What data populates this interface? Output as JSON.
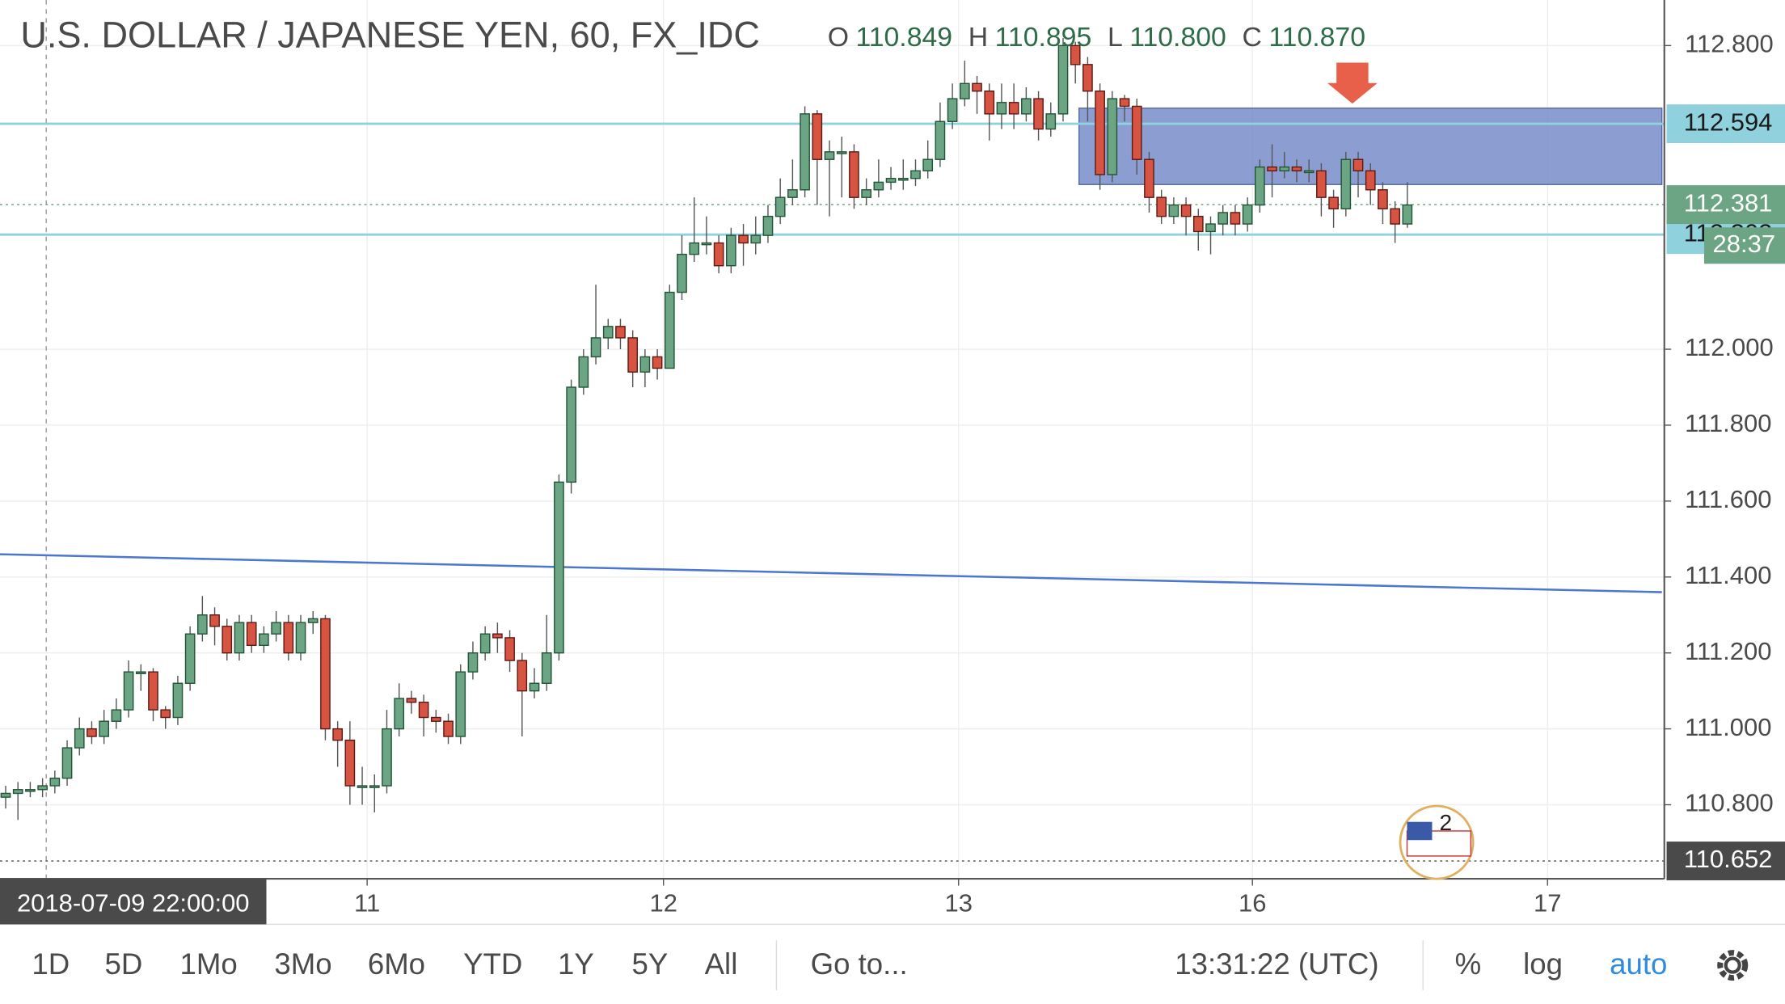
{
  "chart_data": {
    "type": "candlestick",
    "title": "U.S. DOLLAR / JAPANESE YEN, 60, FX_IDC",
    "ohlc_legend": [
      {
        "name": "O",
        "value": 110.849
      },
      {
        "name": "H",
        "value": 110.895
      },
      {
        "name": "L",
        "value": 110.8,
        "label": "110.800"
      },
      {
        "name": "C",
        "value": 110.87,
        "label": "110.870"
      }
    ],
    "open": [
      110.82,
      110.83,
      110.84,
      110.84,
      110.85,
      110.87,
      110.95,
      111.0,
      110.98,
      111.02,
      111.05,
      111.15,
      111.15,
      111.05,
      111.03,
      111.12,
      111.25,
      111.3,
      111.27,
      111.2,
      111.28,
      111.22,
      111.25,
      111.28,
      111.2,
      111.28,
      111.29,
      111.0,
      110.97,
      110.85,
      110.85,
      110.85,
      111.0,
      111.08,
      111.07,
      111.03,
      111.02,
      110.98,
      111.15,
      111.2,
      111.25,
      111.24,
      111.18,
      111.1,
      111.12,
      111.2,
      111.65,
      111.9,
      111.98,
      112.03,
      112.06,
      112.03,
      111.94,
      111.98,
      111.95,
      112.15,
      112.25,
      112.28,
      112.28,
      112.22,
      112.3,
      112.28,
      112.3,
      112.35,
      112.4,
      112.42,
      112.62,
      112.5,
      112.52,
      112.52,
      112.4,
      112.42,
      112.44,
      112.45,
      112.45,
      112.47,
      112.5,
      112.6,
      112.66,
      112.7,
      112.68,
      112.62,
      112.65,
      112.62,
      112.66,
      112.58,
      112.62,
      112.8,
      112.75,
      112.68,
      112.46,
      112.66,
      112.64,
      112.5,
      112.4,
      112.35,
      112.38,
      112.35,
      112.31,
      112.33,
      112.36,
      112.33,
      112.38,
      112.48,
      112.47,
      112.48,
      112.47,
      112.47,
      112.4,
      112.37,
      112.5,
      112.47,
      112.42,
      112.37,
      112.33
    ],
    "high": [
      110.85,
      110.86,
      110.86,
      110.87,
      110.89,
      110.97,
      111.03,
      111.02,
      111.05,
      111.08,
      111.18,
      111.17,
      111.16,
      111.06,
      111.14,
      111.27,
      111.35,
      111.32,
      111.29,
      111.3,
      111.3,
      111.27,
      111.31,
      111.3,
      111.3,
      111.31,
      111.3,
      111.02,
      111.02,
      110.9,
      110.88,
      111.05,
      111.12,
      111.1,
      111.09,
      111.05,
      111.04,
      111.17,
      111.23,
      111.27,
      111.28,
      111.26,
      111.2,
      111.16,
      111.3,
      111.67,
      111.92,
      112.0,
      112.17,
      112.08,
      112.08,
      112.05,
      112.0,
      112.0,
      112.17,
      112.3,
      112.4,
      112.35,
      112.3,
      112.32,
      112.33,
      112.35,
      112.38,
      112.45,
      112.5,
      112.64,
      112.63,
      112.55,
      112.56,
      112.54,
      112.45,
      112.5,
      112.48,
      112.5,
      112.5,
      112.55,
      112.65,
      112.7,
      112.76,
      112.72,
      112.7,
      112.7,
      112.7,
      112.69,
      112.68,
      112.65,
      112.82,
      112.81,
      112.77,
      112.7,
      112.68,
      112.67,
      112.66,
      112.52,
      112.42,
      112.4,
      112.4,
      112.37,
      112.35,
      112.38,
      112.38,
      112.4,
      112.5,
      112.54,
      112.52,
      112.5,
      112.5,
      112.49,
      112.42,
      112.52,
      112.52,
      112.49,
      112.44,
      112.39,
      112.44
    ],
    "low": [
      110.79,
      110.76,
      110.82,
      110.82,
      110.83,
      110.85,
      110.93,
      110.96,
      110.96,
      111.0,
      111.03,
      111.1,
      111.02,
      111.0,
      111.01,
      111.1,
      111.23,
      111.22,
      111.18,
      111.18,
      111.2,
      111.2,
      111.23,
      111.18,
      111.18,
      111.25,
      110.97,
      110.9,
      110.8,
      110.8,
      110.78,
      110.83,
      110.98,
      111.04,
      110.98,
      110.99,
      110.96,
      110.96,
      111.13,
      111.18,
      111.2,
      111.15,
      110.98,
      111.08,
      111.1,
      111.18,
      111.62,
      111.88,
      111.96,
      112.0,
      112.0,
      111.9,
      111.9,
      111.92,
      111.95,
      112.13,
      112.23,
      112.25,
      112.2,
      112.2,
      112.22,
      112.25,
      112.28,
      112.33,
      112.38,
      112.4,
      112.38,
      112.35,
      112.4,
      112.37,
      112.38,
      112.4,
      112.42,
      112.42,
      112.43,
      112.45,
      112.48,
      112.58,
      112.64,
      112.62,
      112.55,
      112.58,
      112.58,
      112.6,
      112.55,
      112.56,
      112.6,
      112.7,
      112.6,
      112.42,
      112.44,
      112.6,
      112.46,
      112.36,
      112.33,
      112.33,
      112.3,
      112.26,
      112.25,
      112.3,
      112.3,
      112.31,
      112.36,
      112.4,
      112.45,
      112.44,
      112.44,
      112.35,
      112.32,
      112.35,
      112.4,
      112.38,
      112.33,
      112.28,
      112.32
    ],
    "close": [
      110.83,
      110.84,
      110.84,
      110.85,
      110.87,
      110.95,
      111.0,
      110.98,
      111.02,
      111.05,
      111.15,
      111.15,
      111.05,
      111.03,
      111.12,
      111.25,
      111.3,
      111.27,
      111.2,
      111.28,
      111.22,
      111.25,
      111.28,
      111.2,
      111.28,
      111.29,
      111.0,
      110.97,
      110.85,
      110.85,
      110.85,
      111.0,
      111.08,
      111.07,
      111.03,
      111.02,
      110.98,
      111.15,
      111.2,
      111.25,
      111.24,
      111.18,
      111.1,
      111.12,
      111.2,
      111.65,
      111.9,
      111.98,
      112.03,
      112.06,
      112.03,
      111.94,
      111.98,
      111.95,
      112.15,
      112.25,
      112.28,
      112.28,
      112.22,
      112.3,
      112.28,
      112.3,
      112.35,
      112.4,
      112.42,
      112.62,
      112.5,
      112.52,
      112.52,
      112.4,
      112.42,
      112.44,
      112.45,
      112.45,
      112.47,
      112.5,
      112.6,
      112.66,
      112.7,
      112.68,
      112.62,
      112.65,
      112.62,
      112.66,
      112.58,
      112.62,
      112.8,
      112.75,
      112.68,
      112.46,
      112.66,
      112.64,
      112.5,
      112.4,
      112.35,
      112.38,
      112.35,
      112.31,
      112.33,
      112.36,
      112.33,
      112.38,
      112.48,
      112.47,
      112.48,
      112.47,
      112.47,
      112.4,
      112.37,
      112.5,
      112.47,
      112.42,
      112.37,
      112.33,
      112.38
    ],
    "up_color": "#6ba583",
    "down_color": "#d75442",
    "xlim": [
      -0.46,
      134.9
    ],
    "xticks": [
      {
        "value": 29.4,
        "label": "11"
      },
      {
        "value": 53.5,
        "label": "12"
      },
      {
        "value": 77.5,
        "label": "13"
      },
      {
        "value": 101.4,
        "label": "16"
      },
      {
        "value": 125.4,
        "label": "17"
      }
    ],
    "ylim": [
      110.605,
      112.92
    ],
    "yticks": [
      {
        "value": 110.8,
        "label": "110.800"
      },
      {
        "value": 111.0,
        "label": "111.000"
      },
      {
        "value": 111.2,
        "label": "111.200"
      },
      {
        "value": 111.4,
        "label": "111.400"
      },
      {
        "value": 111.6,
        "label": "111.600"
      },
      {
        "value": 111.8,
        "label": "111.800"
      },
      {
        "value": 112.0,
        "label": "112.000"
      },
      {
        "value": 112.8,
        "label": "112.800"
      }
    ],
    "grid": true,
    "crosshair": {
      "x": 3.3,
      "label": "2018-07-09 22:00:00"
    },
    "hlines": [
      {
        "value": 112.594,
        "color": "#8fd1dd",
        "style": "solid"
      },
      {
        "value": 112.302,
        "color": "#8fd1dd",
        "style": "solid"
      },
      {
        "value": 112.381,
        "color": "#6ba583",
        "style": "dotted"
      },
      {
        "value": 110.652,
        "color": "#4a4a4a",
        "style": "dotted"
      }
    ],
    "countdown": "28:37",
    "trendline": {
      "x": [
        -0.46,
        134.7
      ],
      "y": [
        111.46,
        111.36
      ],
      "color": "#4a78d0"
    },
    "zone": {
      "x": [
        87.3,
        134.7
      ],
      "y": [
        112.434,
        112.635
      ],
      "color": "#6f86c6"
    },
    "event_count": 2
  },
  "toolbar": {
    "ranges": [
      "1D",
      "5D",
      "1Mo",
      "3Mo",
      "6Mo",
      "YTD",
      "1Y",
      "5Y",
      "All"
    ],
    "goto": "Go to...",
    "clock": "13:31:22 (UTC)",
    "percent": "%",
    "log": "log",
    "auto": "auto"
  }
}
